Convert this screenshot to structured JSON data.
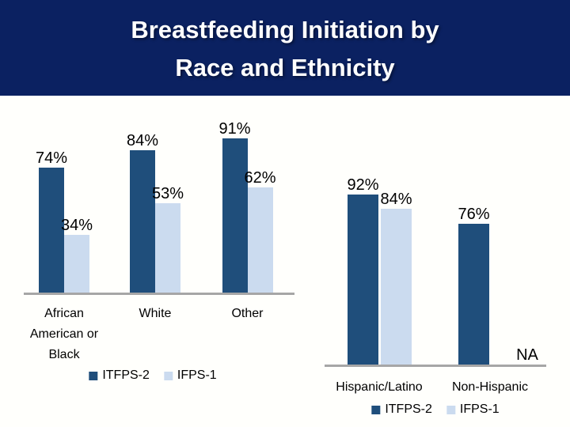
{
  "slide": {
    "title_lines": [
      "Breastfeeding Initiation by",
      "Race and Ethnicity"
    ]
  },
  "colors": {
    "header_background": "#0B2161",
    "title_text": "#FFFFFF",
    "slide_background": "#FFFFFC",
    "series_colors": [
      "#1F4E7B",
      "#CBDBEF"
    ],
    "axis_line": "#A6A6A6",
    "label_text": "#000000"
  },
  "legend": {
    "items": [
      {
        "label": "ITFPS-2"
      },
      {
        "label": "IFPS-1"
      }
    ]
  },
  "chart_data": [
    {
      "type": "bar",
      "categories": [
        "African American or Black",
        "White",
        "Other"
      ],
      "series": [
        {
          "name": "ITFPS-2",
          "values": [
            74,
            84,
            91
          ],
          "data_labels": [
            "74%",
            "84%",
            "91%"
          ]
        },
        {
          "name": "IFPS-1",
          "values": [
            34,
            53,
            62
          ],
          "data_labels": [
            "34%",
            "53%",
            "62%"
          ]
        }
      ],
      "ylim": [
        0,
        100
      ],
      "grid": false,
      "y_axis": "hidden",
      "legend_position": "bottom",
      "data_labels": true
    },
    {
      "type": "bar",
      "categories": [
        "Hispanic/Latino",
        "Non-Hispanic"
      ],
      "series": [
        {
          "name": "ITFPS-2",
          "values": [
            92,
            76
          ],
          "data_labels": [
            "92%",
            "76%"
          ]
        },
        {
          "name": "IFPS-1",
          "values": [
            84,
            null
          ],
          "data_labels": [
            "84%",
            "NA"
          ]
        }
      ],
      "ylim": [
        0,
        100
      ],
      "grid": false,
      "y_axis": "hidden",
      "legend_position": "bottom",
      "data_labels": true
    }
  ]
}
